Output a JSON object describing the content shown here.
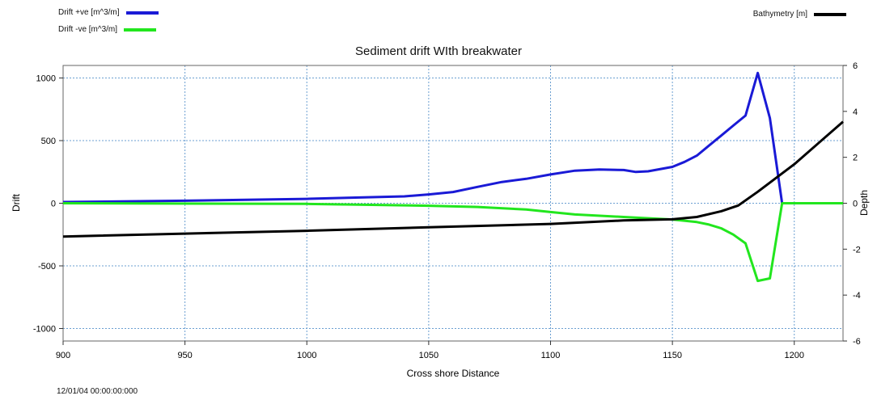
{
  "timestamp": "12/01/04 00:00:00:000",
  "chart_data": {
    "type": "line",
    "title": "Sediment drift WIth breakwater",
    "xlabel": "Cross shore Distance",
    "ylabel": "Drift",
    "y2label": "Depth",
    "xlim": [
      900,
      1220
    ],
    "ylim": [
      -1100,
      1100
    ],
    "y2lim": [
      -6,
      6
    ],
    "xticks": [
      "900",
      "950",
      "1000",
      "1050",
      "1100",
      "1150",
      "1200"
    ],
    "yticks": [
      "1000",
      "500",
      "0",
      "-500",
      "-1000"
    ],
    "y2ticks": [
      "6",
      "4",
      "2",
      "0",
      "-2",
      "-4",
      "-6"
    ],
    "grid": true,
    "legend": [
      {
        "name": "Drift +ve [m^3/m]",
        "color": "#1a1ad6",
        "placement": "top-left"
      },
      {
        "name": "Drift -ve [m^3/m]",
        "color": "#22e61e",
        "placement": "top-left"
      },
      {
        "name": "Bathymetry [m]",
        "color": "#000000",
        "placement": "top-right"
      }
    ],
    "series": [
      {
        "name": "Drift +ve [m^3/m]",
        "axis": "left",
        "color": "#1a1ad6",
        "x": [
          900,
          950,
          1000,
          1020,
          1040,
          1050,
          1060,
          1070,
          1080,
          1090,
          1100,
          1110,
          1120,
          1130,
          1135,
          1140,
          1150,
          1155,
          1160,
          1165,
          1170,
          1175,
          1180,
          1185,
          1190,
          1195
        ],
        "y": [
          10,
          20,
          35,
          45,
          55,
          70,
          90,
          130,
          170,
          195,
          230,
          260,
          270,
          265,
          250,
          255,
          290,
          330,
          380,
          460,
          540,
          620,
          700,
          1040,
          680,
          0
        ]
      },
      {
        "name": "Drift -ve [m^3/m]",
        "axis": "left",
        "color": "#22e61e",
        "x": [
          900,
          1000,
          1050,
          1070,
          1090,
          1100,
          1110,
          1130,
          1150,
          1160,
          1165,
          1170,
          1175,
          1180,
          1185,
          1190,
          1195,
          1220
        ],
        "y": [
          0,
          -5,
          -20,
          -30,
          -50,
          -70,
          -90,
          -110,
          -130,
          -150,
          -170,
          -200,
          -250,
          -320,
          -620,
          -600,
          0,
          0
        ]
      },
      {
        "name": "Bathymetry [m]",
        "axis": "right",
        "color": "#000000",
        "x": [
          900,
          1000,
          1050,
          1100,
          1130,
          1150,
          1160,
          1170,
          1177,
          1185,
          1200,
          1220
        ],
        "y": [
          -1.45,
          -1.2,
          -1.05,
          -0.9,
          -0.75,
          -0.7,
          -0.6,
          -0.35,
          -0.1,
          0.5,
          1.7,
          3.55
        ]
      }
    ]
  }
}
